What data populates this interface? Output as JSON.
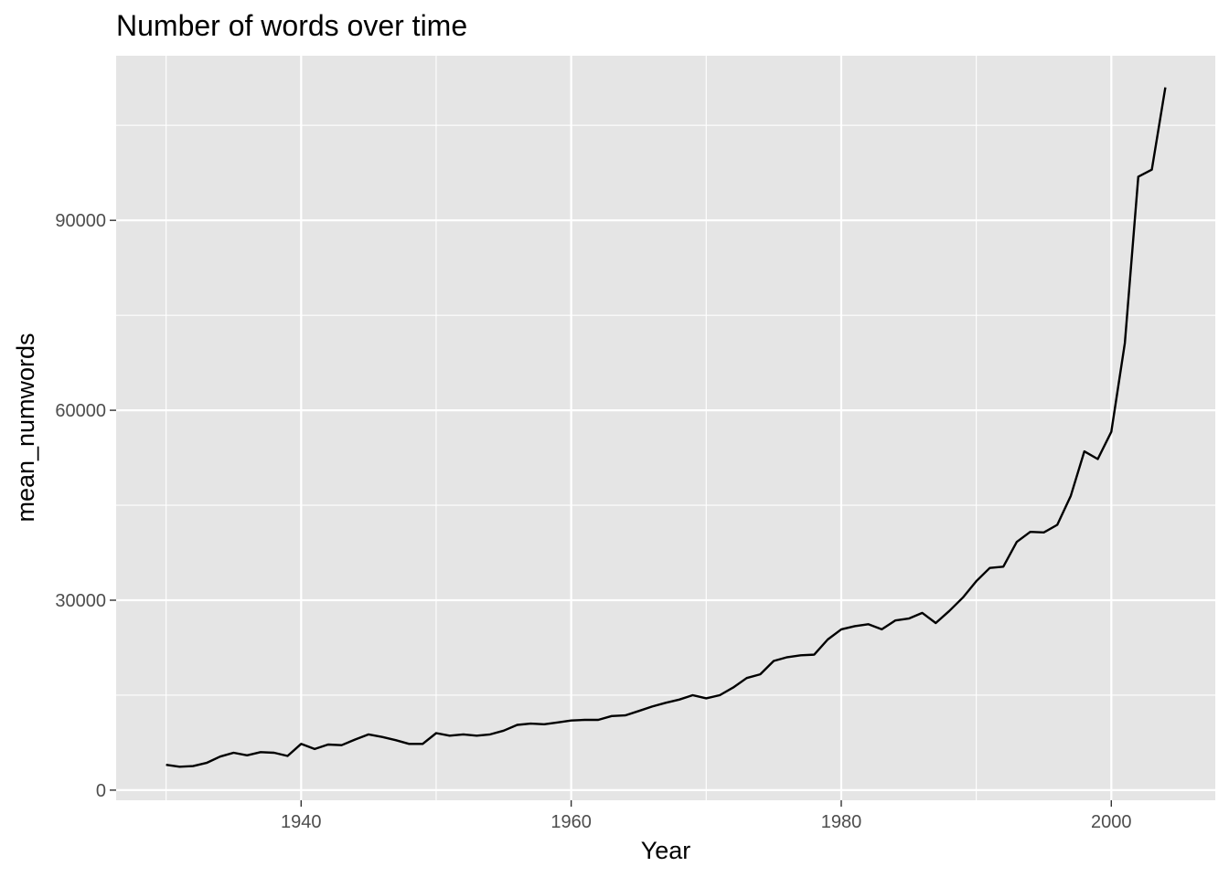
{
  "chart_data": {
    "type": "line",
    "title": "Number of words over time",
    "xlabel": "Year",
    "ylabel": "mean_numwords",
    "xlim": [
      1926.3,
      2007.7
    ],
    "ylim": [
      -1600,
      116000
    ],
    "x_ticks": [
      1940,
      1960,
      1980,
      2000
    ],
    "x_tick_labels": [
      "1940",
      "1960",
      "1980",
      "2000"
    ],
    "x_minor_ticks": [
      1930,
      1950,
      1970,
      1990
    ],
    "y_ticks": [
      0,
      30000,
      60000,
      90000
    ],
    "y_tick_labels": [
      "0",
      "30000",
      "60000",
      "90000"
    ],
    "y_minor_ticks": [
      15000,
      45000,
      75000,
      105000
    ],
    "grid": true,
    "legend": "none",
    "colors": {
      "panel": "#e5e5e5",
      "line": "#000000"
    },
    "series": [
      {
        "x": [
          1930,
          1931,
          1932,
          1933,
          1934,
          1935,
          1936,
          1937,
          1938,
          1939,
          1940,
          1941,
          1942,
          1943,
          1944,
          1945,
          1946,
          1947,
          1948,
          1949,
          1950,
          1951,
          1952,
          1953,
          1954,
          1955,
          1956,
          1957,
          1958,
          1959,
          1960,
          1961,
          1962,
          1963,
          1964,
          1965,
          1966,
          1967,
          1968,
          1969,
          1970,
          1971,
          1972,
          1973,
          1974,
          1975,
          1976,
          1977,
          1978,
          1979,
          1980,
          1981,
          1982,
          1983,
          1984,
          1985,
          1986,
          1987,
          1988,
          1989,
          1990,
          1991,
          1992,
          1993,
          1994,
          1995,
          1996,
          1997,
          1998,
          1999,
          2000,
          2001,
          2002,
          2003,
          2004
        ],
        "values": [
          4000,
          3700,
          3800,
          4300,
          5300,
          5900,
          5500,
          6000,
          5900,
          5400,
          7300,
          6500,
          7200,
          7100,
          8000,
          8800,
          8400,
          7900,
          7300,
          7300,
          9000,
          8600,
          8800,
          8600,
          8800,
          9400,
          10300,
          10500,
          10400,
          10700,
          11000,
          11100,
          11100,
          11700,
          11800,
          12500,
          13200,
          13800,
          14300,
          15000,
          14500,
          15000,
          16200,
          17700,
          18300,
          20400,
          21000,
          21300,
          21400,
          23800,
          25400,
          25900,
          26200,
          25400,
          26800,
          27100,
          28000,
          26400,
          28300,
          30400,
          33000,
          35100,
          35300,
          39200,
          40800,
          40700,
          41900,
          46500,
          53500,
          52300,
          56600,
          70600,
          96900,
          98000,
          111000
        ]
      }
    ]
  }
}
